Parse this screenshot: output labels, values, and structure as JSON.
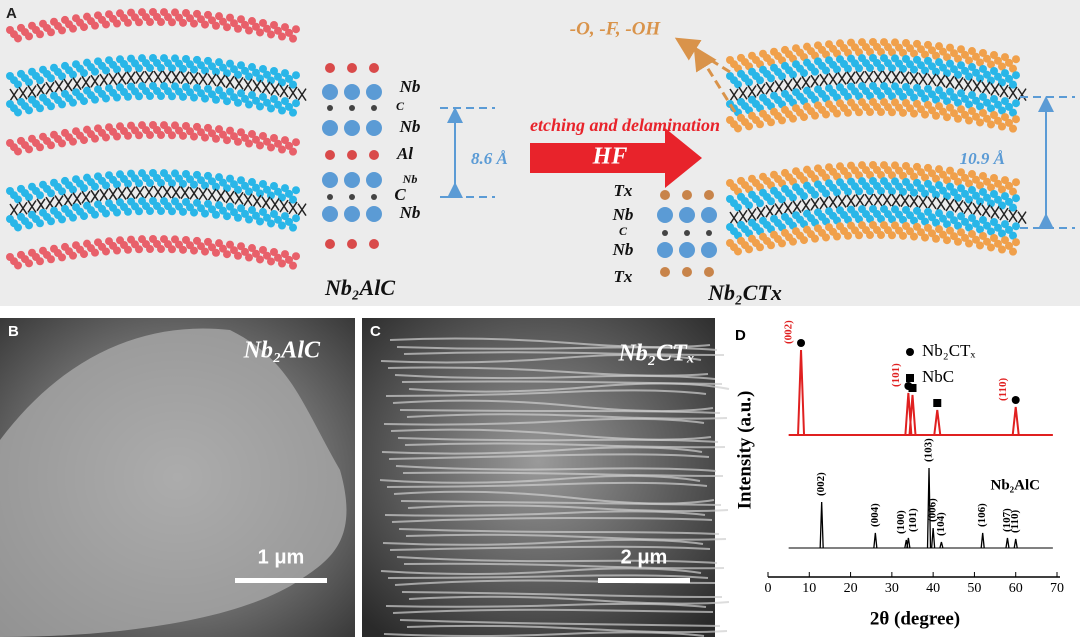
{
  "panel_a": {
    "label": "A",
    "left_name": "Nb₂AlC",
    "right_name": "Nb₂CTx",
    "left_atoms": [
      "Nb",
      "C",
      "Nb",
      "Al",
      "Nb",
      "C",
      "Nb"
    ],
    "right_atoms": [
      "Tx",
      "Nb",
      "C",
      "Nb",
      "Tx"
    ],
    "left_spacing": "8.6 Å",
    "right_spacing": "10.9 Å",
    "process": "etching and delamination",
    "reagent": "HF",
    "terminations": "-O, -F, -OH"
  },
  "panel_b": {
    "label": "B",
    "title": "Nb₂AlC",
    "scale": "1 μm"
  },
  "panel_c": {
    "label": "C",
    "title": "Nb₂CTₓ",
    "scale": "2 μm"
  },
  "chart_data": {
    "type": "xrd",
    "label": "D",
    "xlabel": "2θ (degree)",
    "ylabel": "Intensity (a.u.)",
    "xlim": [
      0,
      70
    ],
    "xticks": [
      0,
      10,
      20,
      30,
      40,
      50,
      60,
      70
    ],
    "series": [
      {
        "color": "#e02020",
        "x": [
          8,
          34,
          35,
          41,
          60
        ],
        "intensity": [
          85,
          42,
          40,
          25,
          28
        ],
        "peak_labels": [
          "(002)",
          "(101)",
          null,
          null,
          "(110)"
        ]
      },
      {
        "name": "Nb₂AlC",
        "color": "#000000",
        "x": [
          13,
          26,
          33.5,
          34,
          39,
          40,
          42,
          52,
          58,
          60
        ],
        "intensity": [
          46,
          15,
          8,
          10,
          80,
          20,
          6,
          15,
          10,
          9
        ],
        "peak_labels": [
          "(002)",
          "(004)",
          "(100)",
          "(101)",
          "(103)",
          "(006)",
          "(104)",
          "(106)",
          "(107)",
          "(110)"
        ]
      }
    ],
    "legend": [
      {
        "name": "Nb₂CTₓ",
        "marker": "circle",
        "x": [
          8,
          34,
          60
        ]
      },
      {
        "name": "NbC",
        "marker": "square",
        "x": [
          35,
          41
        ]
      }
    ]
  }
}
